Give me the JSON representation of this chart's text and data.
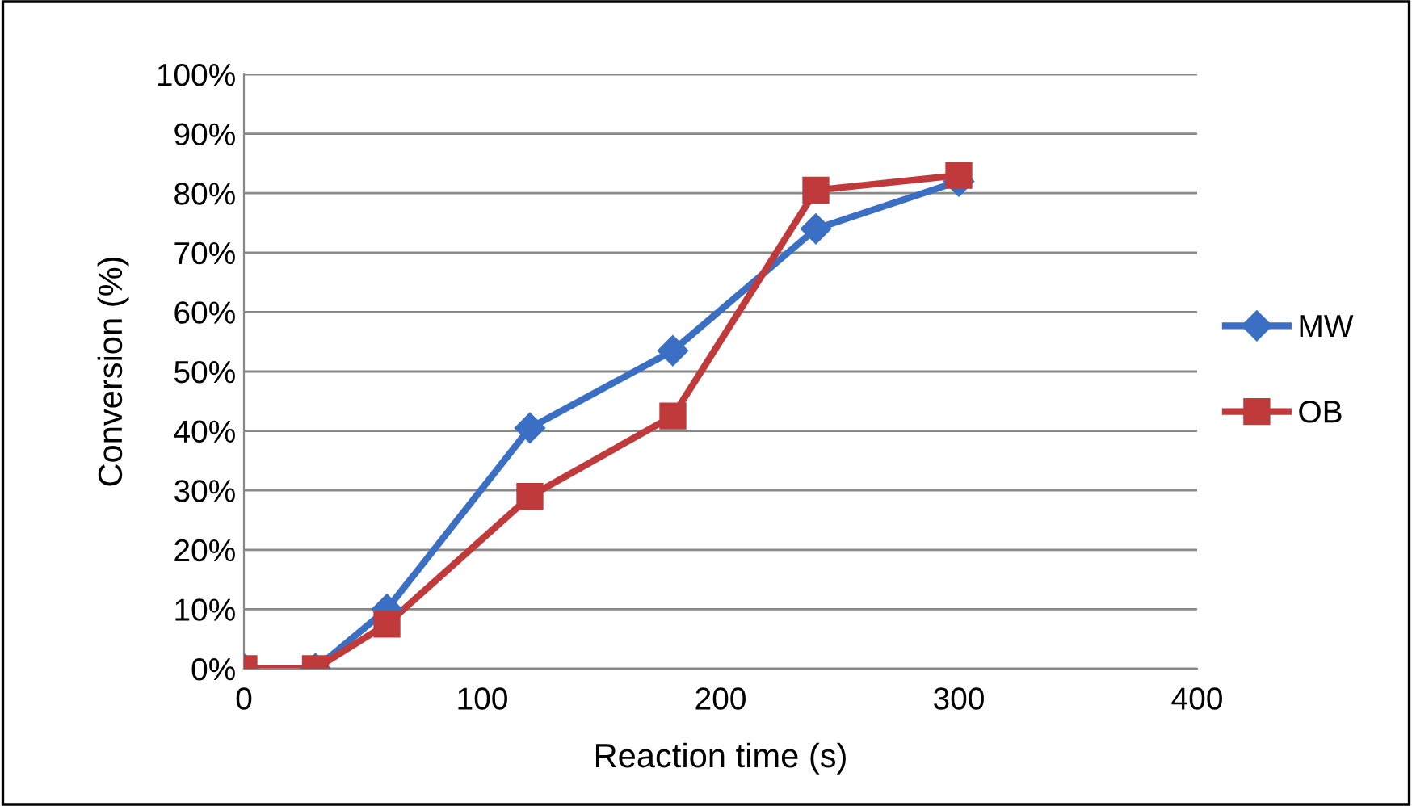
{
  "chart_data": {
    "type": "line",
    "xlabel": "Reaction time (s)",
    "ylabel": "Conversion (%)",
    "series": [
      {
        "name": "MW",
        "color": "#3a6fc4",
        "marker": "diamond",
        "x": [
          0,
          30,
          60,
          120,
          180,
          240,
          300
        ],
        "values": [
          0,
          0,
          10,
          40.5,
          53.5,
          74,
          82
        ]
      },
      {
        "name": "OB",
        "color": "#c0393b",
        "marker": "square",
        "x": [
          0,
          30,
          60,
          120,
          180,
          240,
          300
        ],
        "values": [
          0,
          0,
          7.5,
          29,
          42.5,
          80.5,
          83
        ]
      }
    ],
    "xlim": [
      0,
      400
    ],
    "xticks": [
      0,
      100,
      200,
      300,
      400
    ],
    "ylim": [
      0,
      100
    ],
    "yticks": [
      {
        "value": 0,
        "label": "0%"
      },
      {
        "value": 10,
        "label": "10%"
      },
      {
        "value": 20,
        "label": "20%"
      },
      {
        "value": 30,
        "label": "30%"
      },
      {
        "value": 40,
        "label": "40%"
      },
      {
        "value": 50,
        "label": "50%"
      },
      {
        "value": 60,
        "label": "60%"
      },
      {
        "value": 70,
        "label": "70%"
      },
      {
        "value": 80,
        "label": "80%"
      },
      {
        "value": 90,
        "label": "90%"
      },
      {
        "value": 100,
        "label": "100%"
      }
    ],
    "grid": "y",
    "legend": "right",
    "line_style": "solid"
  }
}
